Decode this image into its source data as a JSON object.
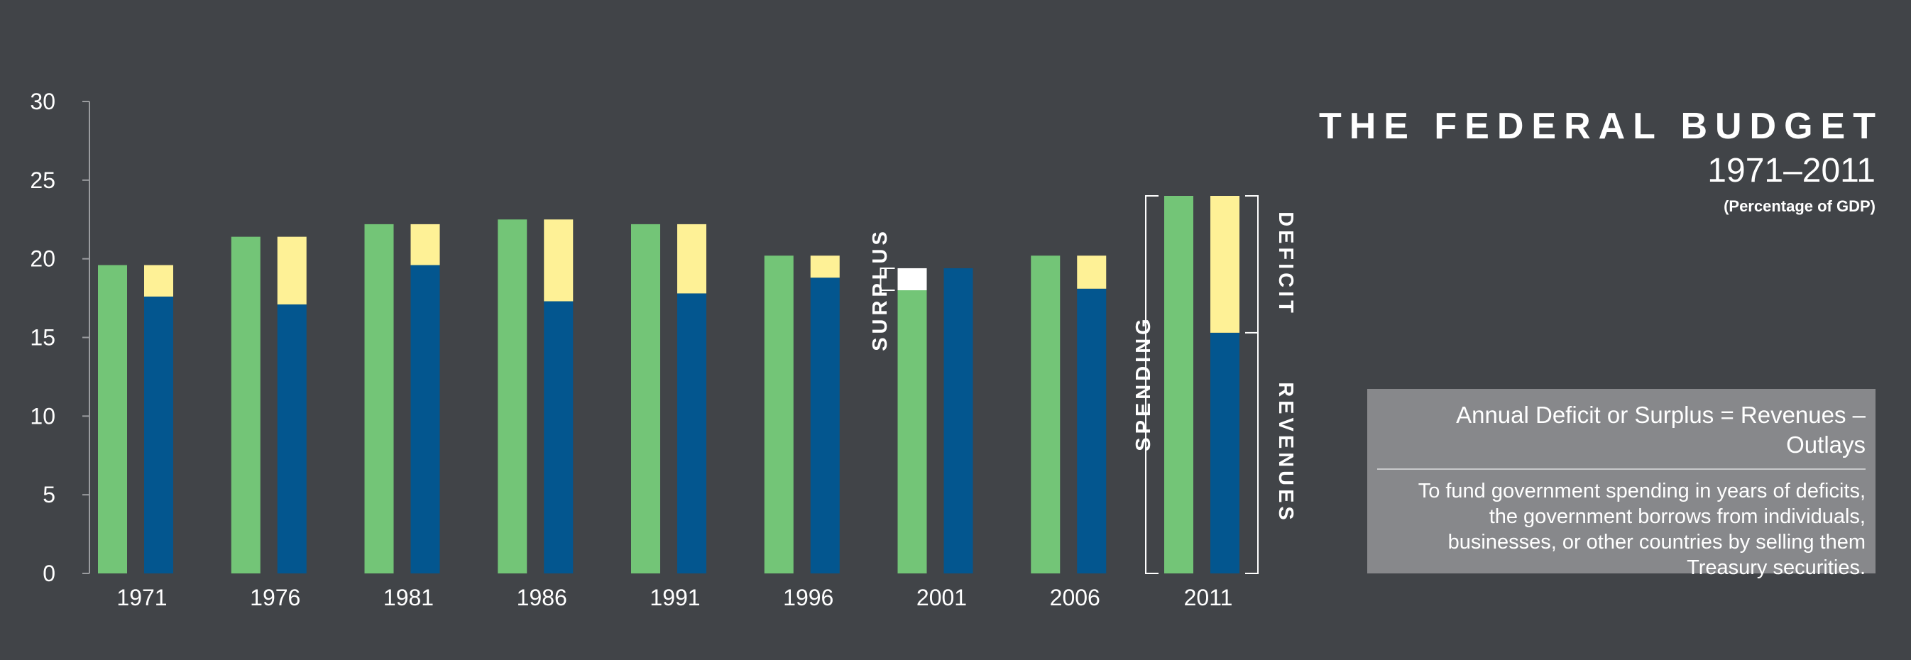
{
  "colors": {
    "background": "#414448",
    "spending": "#73c577",
    "revenues": "#03568f",
    "deficit": "#fef196",
    "surplus": "#ffffff",
    "axis": "#9a9c9f",
    "text": "#ffffff"
  },
  "title": {
    "main": "THE FEDERAL BUDGET",
    "years": "1971–2011",
    "unit": "(Percentage of GDP)"
  },
  "annotations": {
    "surplus": "SURPLUS",
    "spending": "SPENDING",
    "deficit": "DEFICIT",
    "revenues": "REVENUES"
  },
  "info_box": {
    "heading": "Annual Deficit or Surplus = Revenues – Outlays",
    "lines": [
      "To fund government spending in years of deficits,",
      "the government borrows from individuals,",
      "businesses, or other countries by selling them",
      "Treasury securities."
    ]
  },
  "chart_data": {
    "type": "bar",
    "categories": [
      "1971",
      "1976",
      "1981",
      "1986",
      "1991",
      "1996",
      "2001",
      "2006",
      "2011"
    ],
    "series": [
      {
        "name": "SPENDING",
        "values": [
          19.6,
          21.4,
          22.2,
          22.5,
          22.2,
          20.2,
          18.0,
          20.2,
          24.0
        ]
      },
      {
        "name": "REVENUES",
        "values": [
          17.6,
          17.1,
          19.6,
          17.3,
          17.8,
          18.8,
          19.4,
          18.1,
          15.3
        ]
      }
    ],
    "deficit": [
      2.0,
      4.3,
      2.6,
      5.2,
      4.4,
      1.4,
      0,
      2.1,
      8.7
    ],
    "surplus": [
      0,
      0,
      0,
      0,
      0,
      0,
      1.4,
      0,
      0
    ],
    "ylim": [
      0,
      30
    ],
    "yticks": [
      0,
      5,
      10,
      15,
      20,
      25,
      30
    ],
    "xlabel": "",
    "ylabel": ""
  }
}
